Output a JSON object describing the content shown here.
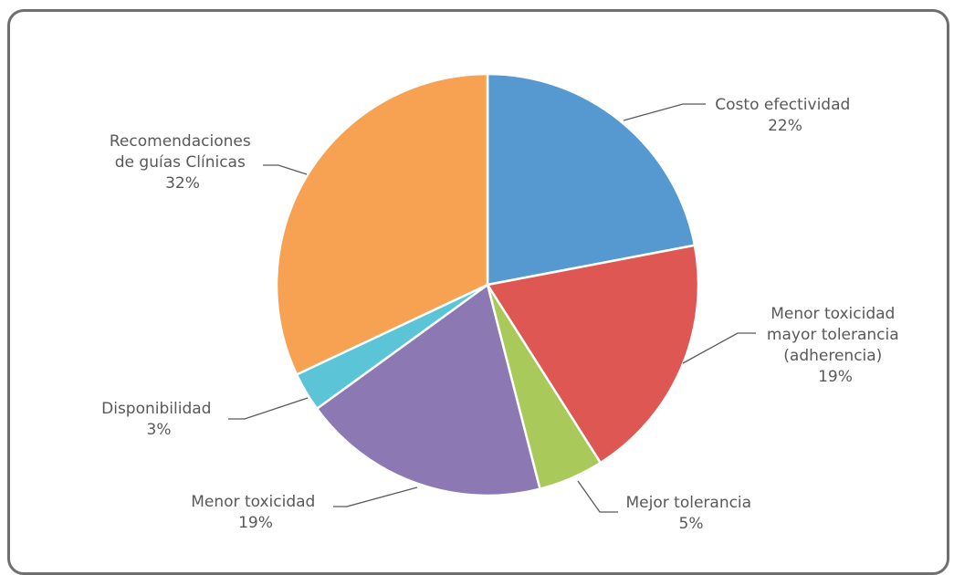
{
  "chart_data": {
    "type": "pie",
    "title": "",
    "slices": [
      {
        "label": "Costo efectividad",
        "value": 22,
        "pct_text": "22%",
        "color": "#5699d0"
      },
      {
        "label": "Menor toxicidad mayor tolerancia (adherencia)",
        "value": 19,
        "pct_text": "19%",
        "color": "#de5753"
      },
      {
        "label": "Mejor tolerancia",
        "value": 5,
        "pct_text": "5%",
        "color": "#a9c95b"
      },
      {
        "label": "Menor toxicidad",
        "value": 19,
        "pct_text": "19%",
        "color": "#8c79b3"
      },
      {
        "label": "Disponibilidad",
        "value": 3,
        "pct_text": "3%",
        "color": "#5bc4d6"
      },
      {
        "label": "Recomendaciones de guías Clínicas",
        "value": 32,
        "pct_text": "32%",
        "color": "#f6a252"
      }
    ],
    "start_angle": "12 o'clock",
    "direction": "clockwise",
    "legend": "none (data labels with leader lines)"
  },
  "labels": {
    "costo_line1": "Costo efectividad",
    "costo_pct": "22%",
    "mtmt_line1": "Menor toxicidad",
    "mtmt_line2": "mayor tolerancia",
    "mtmt_line3": "(adherencia)",
    "mtmt_pct": "19%",
    "mejor_line1": "Mejor tolerancia",
    "mejor_pct": "5%",
    "mtox_line1": "Menor toxicidad",
    "mtox_pct": "19%",
    "disp_line1": "Disponibilidad",
    "disp_pct": "3%",
    "rec_line1": "Recomendaciones",
    "rec_line2": "de guías Clínicas",
    "rec_pct": "32%"
  }
}
